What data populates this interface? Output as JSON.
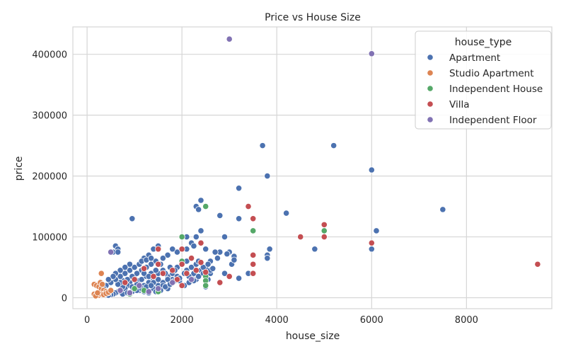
{
  "chart_data": {
    "type": "scatter",
    "title": "Price vs House Size",
    "xlabel": "house_size",
    "ylabel": "price",
    "xlim": [
      -300,
      9800
    ],
    "ylim": [
      -18000,
      445000
    ],
    "xticks": [
      0,
      2000,
      4000,
      6000,
      8000
    ],
    "yticks": [
      0,
      100000,
      200000,
      300000,
      400000
    ],
    "grid": true,
    "legend": {
      "title": "house_type",
      "placement": "top-right"
    },
    "series": [
      {
        "name": "Apartment",
        "color": "#4c72b0",
        "points": [
          [
            3000,
            425000
          ],
          [
            3700,
            250000
          ],
          [
            5200,
            250000
          ],
          [
            3800,
            200000
          ],
          [
            6000,
            210000
          ],
          [
            3200,
            180000
          ],
          [
            2400,
            160000
          ],
          [
            2300,
            150000
          ],
          [
            2350,
            145000
          ],
          [
            4200,
            139000
          ],
          [
            7500,
            145000
          ],
          [
            2800,
            135000
          ],
          [
            3200,
            130000
          ],
          [
            950,
            130000
          ],
          [
            6100,
            110000
          ],
          [
            2400,
            110000
          ],
          [
            2100,
            100000
          ],
          [
            2300,
            100000
          ],
          [
            2900,
            100000
          ],
          [
            2000,
            100000
          ],
          [
            3850,
            80000
          ],
          [
            4800,
            80000
          ],
          [
            6000,
            80000
          ],
          [
            3800,
            70000
          ],
          [
            3800,
            65000
          ],
          [
            3000,
            75000
          ],
          [
            3100,
            68000
          ],
          [
            2950,
            72000
          ],
          [
            2800,
            75000
          ],
          [
            2700,
            75000
          ],
          [
            2600,
            60000
          ],
          [
            2500,
            80000
          ],
          [
            2200,
            90000
          ],
          [
            2250,
            85000
          ],
          [
            2100,
            80000
          ],
          [
            1900,
            75000
          ],
          [
            1800,
            80000
          ],
          [
            1700,
            70000
          ],
          [
            1600,
            65000
          ],
          [
            1500,
            85000
          ],
          [
            1400,
            80000
          ],
          [
            1300,
            70000
          ],
          [
            1200,
            65000
          ],
          [
            600,
            85000
          ],
          [
            650,
            80000
          ],
          [
            550,
            75000
          ],
          [
            650,
            75000
          ],
          [
            3400,
            40000
          ],
          [
            3200,
            32000
          ],
          [
            2900,
            40000
          ],
          [
            2600,
            40000
          ],
          [
            2500,
            18000
          ],
          [
            2300,
            30000
          ],
          [
            2200,
            35000
          ],
          [
            2100,
            45000
          ],
          [
            1950,
            28000
          ],
          [
            1800,
            30000
          ],
          [
            1700,
            35000
          ],
          [
            1600,
            45000
          ],
          [
            1500,
            40000
          ],
          [
            1400,
            30000
          ],
          [
            1300,
            25000
          ],
          [
            1200,
            20000
          ],
          [
            1100,
            28000
          ],
          [
            1000,
            32000
          ],
          [
            900,
            25000
          ],
          [
            850,
            20000
          ],
          [
            800,
            15000
          ],
          [
            750,
            18000
          ],
          [
            700,
            12000
          ],
          [
            650,
            10000
          ],
          [
            600,
            8000
          ],
          [
            550,
            6000
          ],
          [
            500,
            5000
          ],
          [
            450,
            4000
          ],
          [
            1000,
            15000
          ],
          [
            1100,
            12000
          ],
          [
            1200,
            10000
          ],
          [
            1300,
            8000
          ],
          [
            1400,
            15000
          ],
          [
            1500,
            20000
          ],
          [
            1600,
            25000
          ],
          [
            1700,
            30000
          ],
          [
            1800,
            40000
          ],
          [
            1900,
            50000
          ],
          [
            2000,
            55000
          ],
          [
            2100,
            60000
          ],
          [
            2200,
            50000
          ],
          [
            2300,
            55000
          ],
          [
            2400,
            45000
          ],
          [
            2500,
            50000
          ],
          [
            2600,
            45000
          ],
          [
            1550,
            55000
          ],
          [
            1450,
            60000
          ],
          [
            1350,
            55000
          ],
          [
            1250,
            50000
          ],
          [
            1150,
            45000
          ],
          [
            1050,
            40000
          ],
          [
            950,
            35000
          ],
          [
            850,
            30000
          ],
          [
            750,
            28000
          ],
          [
            700,
            25000
          ],
          [
            650,
            22000
          ],
          [
            950,
            18000
          ],
          [
            1050,
            22000
          ],
          [
            1150,
            30000
          ],
          [
            1250,
            35000
          ],
          [
            1350,
            40000
          ],
          [
            1450,
            45000
          ],
          [
            1650,
            40000
          ],
          [
            1750,
            50000
          ],
          [
            1850,
            45000
          ],
          [
            2050,
            40000
          ],
          [
            2150,
            35000
          ],
          [
            2250,
            40000
          ],
          [
            2350,
            60000
          ],
          [
            2450,
            50000
          ],
          [
            2550,
            55000
          ],
          [
            900,
            45000
          ],
          [
            1000,
            50000
          ],
          [
            1100,
            55000
          ],
          [
            1200,
            40000
          ],
          [
            1300,
            35000
          ],
          [
            1400,
            25000
          ],
          [
            1500,
            30000
          ],
          [
            1600,
            20000
          ],
          [
            1700,
            15000
          ],
          [
            1800,
            25000
          ],
          [
            1900,
            35000
          ],
          [
            800,
            40000
          ],
          [
            700,
            35000
          ],
          [
            600,
            30000
          ],
          [
            500,
            25000
          ],
          [
            400,
            20000
          ],
          [
            350,
            15000
          ],
          [
            300,
            10000
          ],
          [
            250,
            8000
          ],
          [
            200,
            5000
          ],
          [
            750,
            6000
          ],
          [
            850,
            8000
          ],
          [
            950,
            10000
          ],
          [
            1050,
            12000
          ],
          [
            1150,
            15000
          ],
          [
            1250,
            18000
          ],
          [
            1350,
            20000
          ],
          [
            1450,
            10000
          ],
          [
            1550,
            12000
          ],
          [
            1650,
            18000
          ],
          [
            1750,
            22000
          ],
          [
            1850,
            28000
          ],
          [
            1950,
            32000
          ],
          [
            2050,
            20000
          ],
          [
            2150,
            25000
          ],
          [
            2250,
            28000
          ],
          [
            2350,
            35000
          ],
          [
            2450,
            40000
          ],
          [
            2550,
            30000
          ],
          [
            2650,
            48000
          ],
          [
            2750,
            65000
          ],
          [
            3050,
            55000
          ],
          [
            3100,
            62000
          ],
          [
            1150,
            60000
          ],
          [
            1250,
            62000
          ],
          [
            1350,
            65000
          ],
          [
            900,
            55000
          ],
          [
            800,
            50000
          ],
          [
            700,
            45000
          ],
          [
            600,
            40000
          ],
          [
            550,
            35000
          ],
          [
            450,
            30000
          ]
        ]
      },
      {
        "name": "Studio Apartment",
        "color": "#dd8452",
        "points": [
          [
            300,
            40000
          ],
          [
            150,
            22000
          ],
          [
            200,
            20000
          ],
          [
            250,
            18000
          ],
          [
            300,
            15000
          ],
          [
            350,
            12000
          ],
          [
            400,
            10000
          ],
          [
            450,
            8000
          ],
          [
            150,
            6000
          ],
          [
            200,
            5000
          ],
          [
            250,
            4000
          ],
          [
            300,
            6000
          ],
          [
            350,
            5000
          ],
          [
            400,
            7000
          ],
          [
            450,
            9000
          ],
          [
            500,
            12000
          ],
          [
            280,
            25000
          ],
          [
            320,
            22000
          ],
          [
            180,
            3000
          ],
          [
            220,
            8000
          ]
        ]
      },
      {
        "name": "Independent House",
        "color": "#55a868",
        "points": [
          [
            2500,
            150000
          ],
          [
            3500,
            110000
          ],
          [
            5000,
            110000
          ],
          [
            2000,
            100000
          ],
          [
            2500,
            35000
          ],
          [
            2500,
            28000
          ],
          [
            2500,
            20000
          ],
          [
            1000,
            15000
          ],
          [
            1200,
            12000
          ],
          [
            900,
            6000
          ],
          [
            1500,
            10000
          ],
          [
            2000,
            60000
          ]
        ]
      },
      {
        "name": "Villa",
        "color": "#c44e52",
        "points": [
          [
            3400,
            150000
          ],
          [
            3500,
            130000
          ],
          [
            5000,
            120000
          ],
          [
            4500,
            100000
          ],
          [
            5000,
            100000
          ],
          [
            6000,
            90000
          ],
          [
            2400,
            90000
          ],
          [
            2000,
            80000
          ],
          [
            3500,
            70000
          ],
          [
            2200,
            65000
          ],
          [
            2400,
            58000
          ],
          [
            2000,
            55000
          ],
          [
            3500,
            55000
          ],
          [
            2300,
            45000
          ],
          [
            2500,
            42000
          ],
          [
            2100,
            40000
          ],
          [
            3000,
            35000
          ],
          [
            3500,
            40000
          ],
          [
            2800,
            25000
          ],
          [
            2000,
            20000
          ],
          [
            9500,
            55000
          ],
          [
            1500,
            80000
          ],
          [
            1500,
            55000
          ],
          [
            1800,
            45000
          ],
          [
            1200,
            48000
          ],
          [
            1400,
            35000
          ],
          [
            1000,
            30000
          ],
          [
            800,
            25000
          ],
          [
            1600,
            40000
          ],
          [
            1900,
            30000
          ]
        ]
      },
      {
        "name": "Independent Floor",
        "color": "#8172b3",
        "points": [
          [
            3000,
            425000
          ],
          [
            6000,
            401000
          ],
          [
            500,
            75000
          ],
          [
            1300,
            10000
          ],
          [
            1800,
            25000
          ],
          [
            1100,
            20000
          ],
          [
            1500,
            15000
          ],
          [
            900,
            8000
          ],
          [
            2200,
            30000
          ],
          [
            700,
            12000
          ]
        ]
      }
    ]
  }
}
